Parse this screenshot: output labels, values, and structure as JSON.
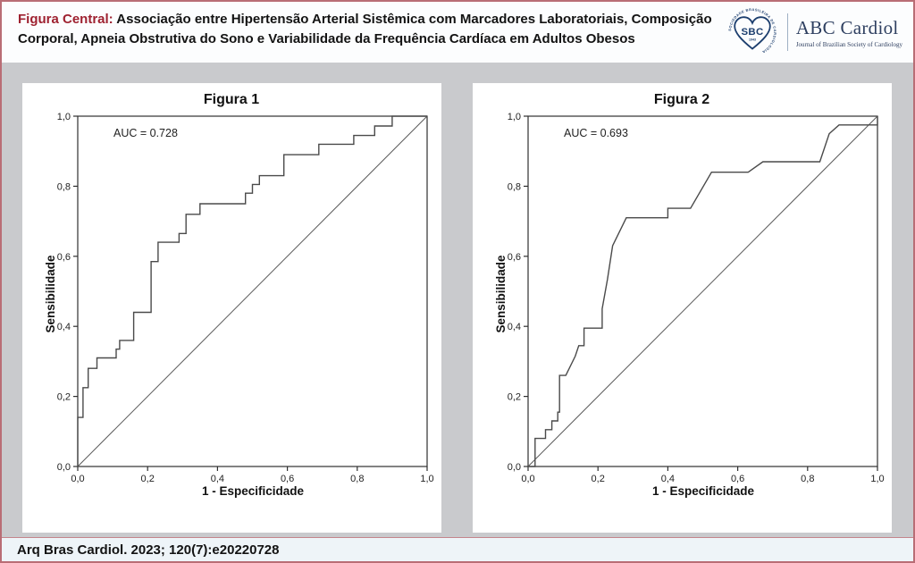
{
  "header": {
    "title_label": "Figura Central:",
    "title_text": " Associação entre Hipertensão Arterial Sistêmica com Marcadores Laboratoriais, Composição Corporal, Apneia Obstrutiva do Sono e Variabilidade da Frequência Cardíaca em  Adultos Obesos",
    "logo": {
      "ring_text": "SOCIEDADE BRASILEIRA DE CARDIOLOGIA",
      "abbr": "SBC",
      "year": "1943",
      "journal_name": "ABC Cardiol",
      "journal_subtitle": "Journal of Brazilian Society of Cardiology"
    }
  },
  "footer": {
    "citation": "Arq Bras Cardiol. 2023; 120(7):e20220728"
  },
  "colors": {
    "accent_red": "#9e2130",
    "border_rose": "#b96d75",
    "band_gray": "#c9cacd",
    "footer_bg": "#eef4f8",
    "logo_navy": "#1c3e6e",
    "curve": "#4a4a4a",
    "reference_line": "#5a5a5a",
    "frame": "#2f2f2f"
  },
  "chart_data": [
    {
      "type": "line",
      "title": "Figura 1",
      "annotation": "AUC = 0.728",
      "auc": 0.728,
      "xlabel": "1 - Especificidade",
      "ylabel": "Sensibilidade",
      "xlim": [
        0,
        1
      ],
      "ylim": [
        0,
        1
      ],
      "grid": false,
      "xticks": {
        "values": [
          0,
          0.2,
          0.4,
          0.6,
          0.8,
          1.0
        ],
        "labels": [
          "0,0",
          "0,2",
          "0,4",
          "0,6",
          "0,8",
          "1,0"
        ]
      },
      "yticks": {
        "values": [
          0,
          0.2,
          0.4,
          0.6,
          0.8,
          1.0
        ],
        "labels": [
          "0,0",
          "0,2",
          "0,4",
          "0,6",
          "0,8",
          "1,0"
        ]
      },
      "reference_line": [
        [
          0,
          0
        ],
        [
          1,
          1
        ]
      ],
      "series": [
        {
          "name": "ROC curve",
          "points": [
            [
              0,
              0
            ],
            [
              0,
              0.14
            ],
            [
              0.015,
              0.14
            ],
            [
              0.015,
              0.225
            ],
            [
              0.03,
              0.225
            ],
            [
              0.03,
              0.28
            ],
            [
              0.055,
              0.28
            ],
            [
              0.055,
              0.31
            ],
            [
              0.11,
              0.31
            ],
            [
              0.11,
              0.335
            ],
            [
              0.12,
              0.335
            ],
            [
              0.12,
              0.36
            ],
            [
              0.16,
              0.36
            ],
            [
              0.16,
              0.44
            ],
            [
              0.21,
              0.44
            ],
            [
              0.21,
              0.585
            ],
            [
              0.23,
              0.585
            ],
            [
              0.23,
              0.64
            ],
            [
              0.29,
              0.64
            ],
            [
              0.29,
              0.665
            ],
            [
              0.31,
              0.665
            ],
            [
              0.31,
              0.72
            ],
            [
              0.35,
              0.72
            ],
            [
              0.35,
              0.75
            ],
            [
              0.48,
              0.75
            ],
            [
              0.48,
              0.78
            ],
            [
              0.5,
              0.78
            ],
            [
              0.5,
              0.805
            ],
            [
              0.52,
              0.805
            ],
            [
              0.52,
              0.83
            ],
            [
              0.59,
              0.83
            ],
            [
              0.59,
              0.89
            ],
            [
              0.69,
              0.89
            ],
            [
              0.69,
              0.92
            ],
            [
              0.79,
              0.92
            ],
            [
              0.79,
              0.945
            ],
            [
              0.85,
              0.945
            ],
            [
              0.85,
              0.972
            ],
            [
              0.9,
              0.972
            ],
            [
              0.9,
              1
            ],
            [
              1,
              1
            ]
          ]
        }
      ]
    },
    {
      "type": "line",
      "title": "Figura 2",
      "annotation": "AUC = 0.693",
      "auc": 0.693,
      "xlabel": "1 - Especificidade",
      "ylabel": "Sensibilidade",
      "xlim": [
        0,
        1
      ],
      "ylim": [
        0,
        1
      ],
      "grid": false,
      "xticks": {
        "values": [
          0,
          0.2,
          0.4,
          0.6,
          0.8,
          1.0
        ],
        "labels": [
          "0,0",
          "0,2",
          "0,4",
          "0,6",
          "0,8",
          "1,0"
        ]
      },
      "yticks": {
        "values": [
          0,
          0.2,
          0.4,
          0.6,
          0.8,
          1.0
        ],
        "labels": [
          "0,0",
          "0,2",
          "0,4",
          "0,6",
          "0,8",
          "1,0"
        ]
      },
      "reference_line": [
        [
          0,
          0
        ],
        [
          1,
          1
        ]
      ],
      "series": [
        {
          "name": "ROC curve",
          "points": [
            [
              0,
              0
            ],
            [
              0.02,
              0
            ],
            [
              0.02,
              0.08
            ],
            [
              0.05,
              0.08
            ],
            [
              0.05,
              0.105
            ],
            [
              0.068,
              0.105
            ],
            [
              0.068,
              0.13
            ],
            [
              0.085,
              0.13
            ],
            [
              0.085,
              0.155
            ],
            [
              0.09,
              0.155
            ],
            [
              0.09,
              0.26
            ],
            [
              0.108,
              0.26
            ],
            [
              0.135,
              0.315
            ],
            [
              0.145,
              0.345
            ],
            [
              0.16,
              0.345
            ],
            [
              0.16,
              0.395
            ],
            [
              0.212,
              0.395
            ],
            [
              0.212,
              0.45
            ],
            [
              0.227,
              0.534
            ],
            [
              0.242,
              0.63
            ],
            [
              0.281,
              0.71
            ],
            [
              0.4,
              0.71
            ],
            [
              0.4,
              0.737
            ],
            [
              0.465,
              0.737
            ],
            [
              0.525,
              0.84
            ],
            [
              0.63,
              0.84
            ],
            [
              0.672,
              0.87
            ],
            [
              0.835,
              0.87
            ],
            [
              0.862,
              0.95
            ],
            [
              0.89,
              0.975
            ],
            [
              1,
              0.975
            ],
            [
              1,
              1
            ]
          ]
        }
      ]
    }
  ]
}
